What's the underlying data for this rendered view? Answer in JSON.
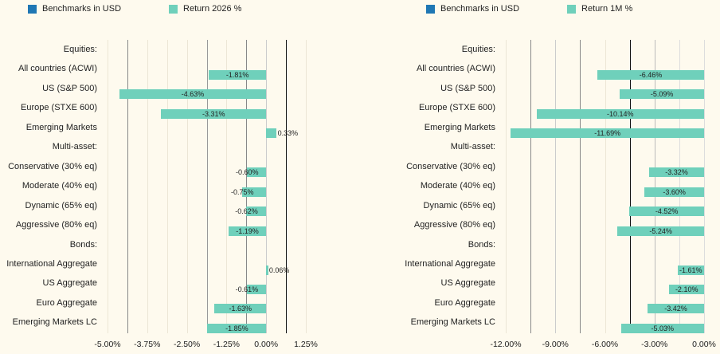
{
  "colors": {
    "benchmark": "#1f77b4",
    "bar": "#6fd0bb"
  },
  "chart_data": [
    {
      "type": "bar",
      "orientation": "horizontal",
      "legend": [
        "Benchmarks in USD",
        "Return 2026 %"
      ],
      "categories": [
        "Equities:",
        "All countries (ACWI)",
        "US (S&P 500)",
        "Europe (STXE 600)",
        "Emerging Markets",
        "Multi-asset:",
        "Conservative (30% eq)",
        "Moderate (40% eq)",
        "Dynamic (65% eq)",
        "Aggressive (80% eq)",
        "Bonds:",
        "International Aggregate",
        "US Aggregate",
        "Euro Aggregate",
        "Emerging Markets LC"
      ],
      "values": [
        null,
        -1.81,
        -4.63,
        -3.31,
        0.33,
        null,
        -0.6,
        -0.75,
        -0.62,
        -1.19,
        null,
        0.06,
        -0.61,
        -1.63,
        -1.85
      ],
      "value_labels": [
        "",
        "-1.81%",
        "-4.63%",
        "-3.31%",
        "0.33%",
        "",
        "-0.60%",
        "-0.75%",
        "-0.62%",
        "-1.19%",
        "",
        "0.06%",
        "-0.61%",
        "-1.63%",
        "-1.85%"
      ],
      "xlim": [
        -5,
        1.25
      ],
      "tick_labels": [
        "-5.00%",
        "-3.75%",
        "-2.50%",
        "-1.25%",
        "0.00%",
        "1.25%"
      ]
    },
    {
      "type": "bar",
      "orientation": "horizontal",
      "legend": [
        "Benchmarks in USD",
        "Return 1M %"
      ],
      "categories": [
        "Equities:",
        "All countries (ACWI)",
        "US (S&P 500)",
        "Europe (STXE 600)",
        "Emerging Markets",
        "Multi-asset:",
        "Conservative (30% eq)",
        "Moderate (40% eq)",
        "Dynamic (65% eq)",
        "Aggressive (80% eq)",
        "Bonds:",
        "International Aggregate",
        "US Aggregate",
        "Euro Aggregate",
        "Emerging Markets LC"
      ],
      "values": [
        null,
        -6.46,
        -5.09,
        -10.14,
        -11.69,
        null,
        -3.32,
        -3.6,
        -4.52,
        -5.24,
        null,
        -1.61,
        -2.1,
        -3.42,
        -5.03
      ],
      "value_labels": [
        "",
        "-6.46%",
        "-5.09%",
        "-10.14%",
        "-11.69%",
        "",
        "-3.32%",
        "-3.60%",
        "-4.52%",
        "-5.24%",
        "",
        "-1.61%",
        "-2.10%",
        "-3.42%",
        "-5.03%"
      ],
      "xlim": [
        -12,
        0
      ],
      "tick_labels": [
        "-12.00%",
        "-9.00%",
        "-6.00%",
        "-3.00%",
        "0.00%"
      ]
    }
  ]
}
